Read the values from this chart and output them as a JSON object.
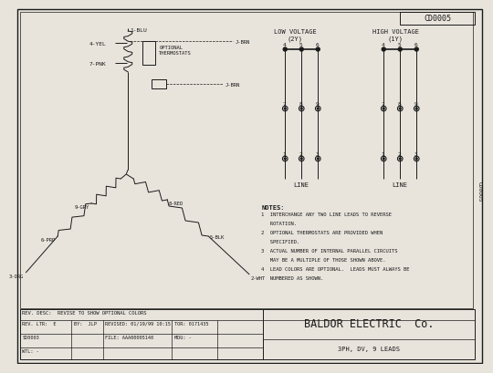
{
  "bg_color": "#e8e4dc",
  "line_color": "#1a1a1a",
  "title_box": "CD0005",
  "company": "BALDOR ELECTRIC  Co.",
  "subtitle": "3PH, DV, 9 LEADS",
  "rev_desc": "REV. DESC:  REVISE TO SHOW OPTIONAL COLORS",
  "low_voltage_title": "LOW VOLTAGE",
  "low_voltage_sub": "(2Y)",
  "high_voltage_title": "HIGH VOLTAGE",
  "high_voltage_sub": "(1Y)",
  "line_label": "LINE",
  "notes_title": "NOTES:",
  "notes": [
    "1  INTERCHANGE ANY TWO LINE LEADS TO REVERSE\n   ROTATION.",
    "2  OPTIONAL THERMOSTATS ARE PROVIDED WHEN\n   SPECIFIED.",
    "3  ACTUAL NUMBER OF INTERNAL PARALLEL CIRCUITS\n   MAY BE A MULTIPLE OF THOSE SHOWN ABOVE.",
    "4  LEAD COLORS ARE OPTIONAL.  LEADS MUST ALWAYS BE\n   NUMBERED AS SHOWN."
  ],
  "optional_thermostats": "OPTIONAL\nTHERMOSTATS",
  "j_brn": "J-BRN",
  "leads": {
    "1": "1-BLU",
    "2": "2-WHT",
    "3": "3-ORG",
    "4": "4-YEL",
    "5": "5-BLK",
    "6": "6-PRP",
    "7": "7-PNK",
    "8": "8-RED",
    "9": "9-GRY"
  }
}
